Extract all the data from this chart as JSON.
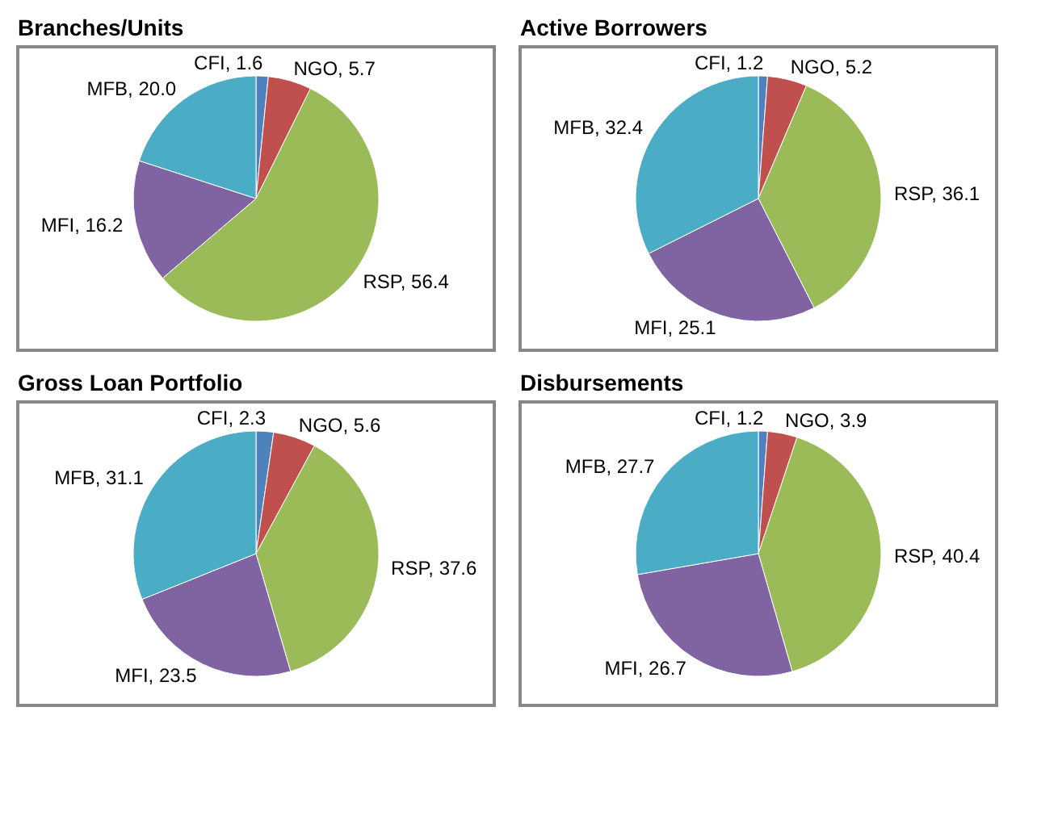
{
  "chart_data": [
    {
      "type": "pie",
      "title": "Branches/Units",
      "categories": [
        "CFI",
        "NGO",
        "RSP",
        "MFI",
        "MFB"
      ],
      "values": [
        1.6,
        5.7,
        56.4,
        16.2,
        20.0
      ],
      "value_labels": [
        "1.6",
        "5.7",
        "56.4",
        "16.2",
        "20.0"
      ],
      "colors": [
        "#4f81bd",
        "#c0504d",
        "#9bbb59",
        "#8064a2",
        "#4bacc6"
      ],
      "legend": false
    },
    {
      "type": "pie",
      "title": "Active Borrowers",
      "categories": [
        "CFI",
        "NGO",
        "RSP",
        "MFI",
        "MFB"
      ],
      "values": [
        1.2,
        5.2,
        36.1,
        25.1,
        32.4
      ],
      "value_labels": [
        "1.2",
        "5.2",
        "36.1",
        "25.1",
        "32.4"
      ],
      "colors": [
        "#4f81bd",
        "#c0504d",
        "#9bbb59",
        "#8064a2",
        "#4bacc6"
      ],
      "legend": false
    },
    {
      "type": "pie",
      "title": "Gross Loan Portfolio",
      "categories": [
        "CFI",
        "NGO",
        "RSP",
        "MFI",
        "MFB"
      ],
      "values": [
        2.3,
        5.6,
        37.6,
        23.5,
        31.1
      ],
      "value_labels": [
        "2.3",
        "5.6",
        "37.6",
        "23.5",
        "31.1"
      ],
      "colors": [
        "#4f81bd",
        "#c0504d",
        "#9bbb59",
        "#8064a2",
        "#4bacc6"
      ],
      "legend": false
    },
    {
      "type": "pie",
      "title": "Disbursements",
      "categories": [
        "CFI",
        "NGO",
        "RSP",
        "MFI",
        "MFB"
      ],
      "values": [
        1.2,
        3.9,
        40.4,
        26.7,
        27.7
      ],
      "value_labels": [
        "1.2",
        "3.9",
        "40.4",
        "26.7",
        "27.7"
      ],
      "colors": [
        "#4f81bd",
        "#c0504d",
        "#9bbb59",
        "#8064a2",
        "#4bacc6"
      ],
      "legend": false
    }
  ]
}
